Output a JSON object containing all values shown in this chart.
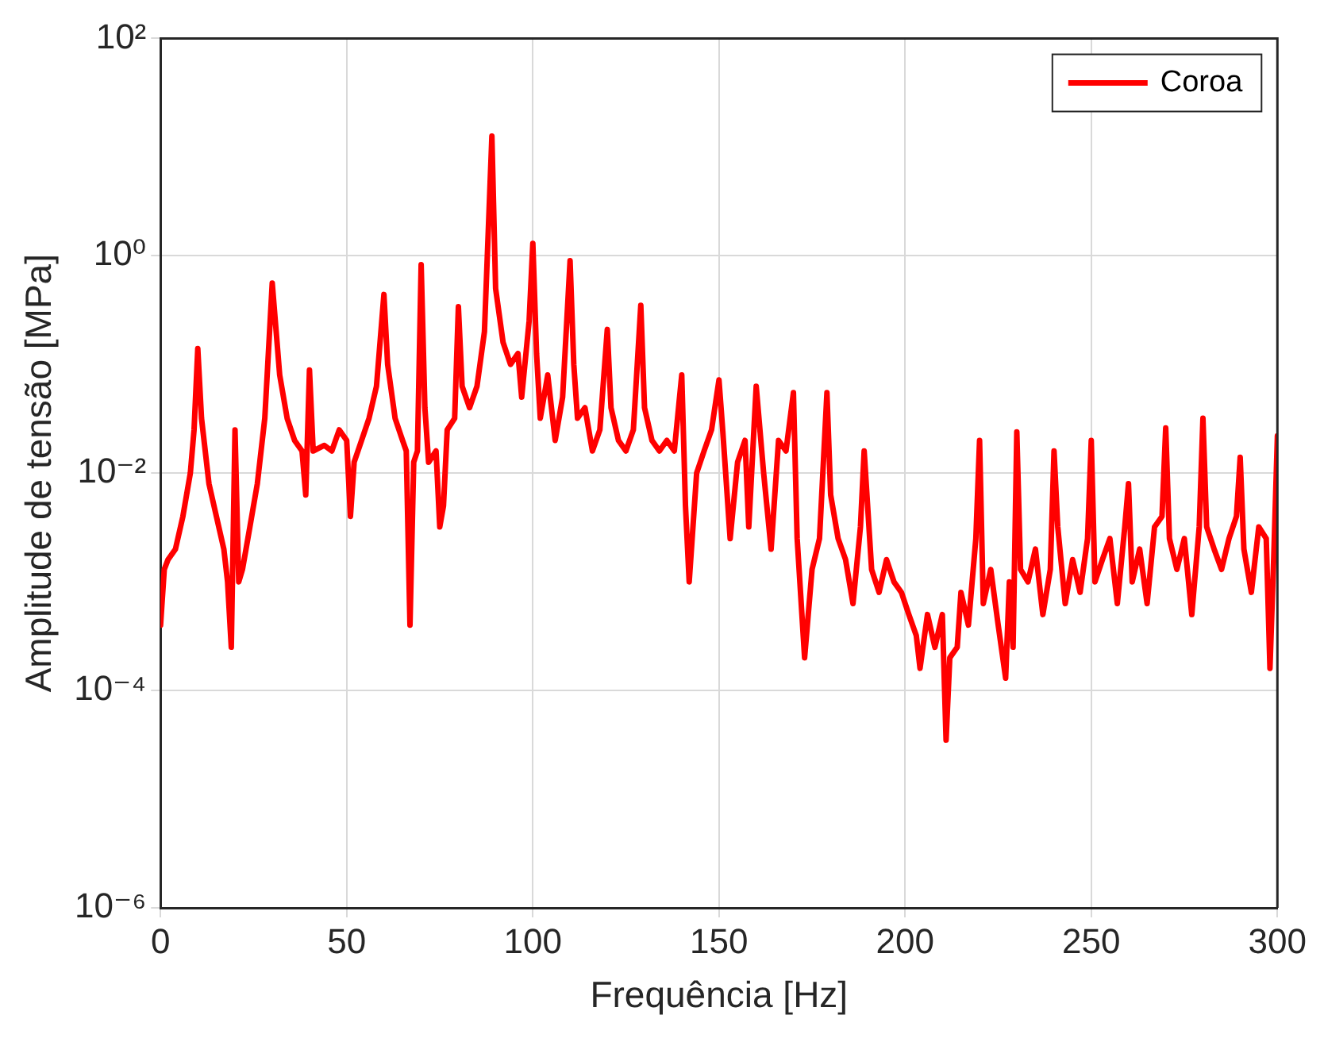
{
  "chart_data": {
    "type": "line",
    "xlabel": "Frequência [Hz]",
    "ylabel": "Amplitude de tensão [MPa]",
    "xlim": [
      0,
      300
    ],
    "xticks": [
      0,
      50,
      100,
      150,
      200,
      250,
      300
    ],
    "ylim": [
      1e-06,
      100
    ],
    "yticks": [
      {
        "value": 1e-06,
        "label": "10⁻⁶"
      },
      {
        "value": 0.0001,
        "label": "10⁻⁴"
      },
      {
        "value": 0.01,
        "label": "10⁻²"
      },
      {
        "value": 1,
        "label": "10⁰"
      },
      {
        "value": 100,
        "label": "10²"
      }
    ],
    "log": "y",
    "grid": true,
    "legend": "top right",
    "marker": "none",
    "line_style": "solid",
    "series": [
      {
        "name": "Coroa",
        "color": "#ff0000",
        "x": [
          0,
          1,
          2,
          4,
          6,
          8,
          9,
          10,
          11,
          13,
          15,
          17,
          18,
          19,
          20,
          21,
          22,
          24,
          26,
          28,
          30,
          32,
          34,
          36,
          38,
          39,
          40,
          41,
          44,
          46,
          48,
          50,
          51,
          52,
          54,
          56,
          58,
          60,
          61,
          63,
          65,
          66,
          67,
          68,
          69,
          70,
          71,
          72,
          74,
          75,
          76,
          77,
          79,
          80,
          81,
          83,
          85,
          87,
          89,
          90,
          92,
          94,
          96,
          97,
          99,
          100,
          101,
          102,
          104,
          106,
          108,
          110,
          111,
          112,
          114,
          116,
          118,
          120,
          121,
          123,
          125,
          127,
          129,
          130,
          132,
          134,
          136,
          138,
          140,
          141,
          142,
          144,
          146,
          148,
          150,
          151,
          153,
          155,
          157,
          158,
          160,
          162,
          164,
          166,
          168,
          170,
          171,
          173,
          175,
          177,
          179,
          180,
          182,
          184,
          186,
          188,
          189,
          191,
          193,
          195,
          197,
          199,
          201,
          203,
          204,
          206,
          208,
          210,
          211,
          212,
          214,
          215,
          217,
          219,
          220,
          221,
          223,
          225,
          227,
          228,
          229,
          230,
          231,
          233,
          235,
          237,
          239,
          240,
          241,
          243,
          245,
          247,
          249,
          250,
          251,
          253,
          255,
          257,
          259,
          260,
          261,
          263,
          265,
          267,
          269,
          270,
          271,
          273,
          275,
          277,
          279,
          280,
          281,
          283,
          285,
          287,
          289,
          290,
          291,
          293,
          295,
          297,
          298,
          299,
          300
        ],
        "values": [
          0.0004,
          0.0013,
          0.0016,
          0.002,
          0.004,
          0.01,
          0.025,
          0.14,
          0.032,
          0.008,
          0.004,
          0.002,
          0.001,
          0.00025,
          0.025,
          0.001,
          0.0013,
          0.0032,
          0.008,
          0.032,
          0.56,
          0.08,
          0.032,
          0.02,
          0.016,
          0.0063,
          0.089,
          0.016,
          0.018,
          0.016,
          0.025,
          0.02,
          0.004,
          0.0126,
          0.02,
          0.032,
          0.063,
          0.44,
          0.1,
          0.032,
          0.02,
          0.016,
          0.0004,
          0.0126,
          0.016,
          0.83,
          0.04,
          0.0126,
          0.016,
          0.0032,
          0.005,
          0.025,
          0.032,
          0.34,
          0.063,
          0.04,
          0.063,
          0.2,
          12.6,
          0.5,
          0.16,
          0.1,
          0.126,
          0.05,
          0.25,
          1.3,
          0.126,
          0.032,
          0.08,
          0.02,
          0.05,
          0.9,
          0.1,
          0.032,
          0.04,
          0.016,
          0.025,
          0.21,
          0.04,
          0.02,
          0.016,
          0.025,
          0.35,
          0.04,
          0.02,
          0.016,
          0.02,
          0.016,
          0.08,
          0.005,
          0.001,
          0.01,
          0.016,
          0.025,
          0.072,
          0.025,
          0.0025,
          0.0126,
          0.02,
          0.0032,
          0.063,
          0.01,
          0.002,
          0.02,
          0.016,
          0.055,
          0.0025,
          0.0002,
          0.0013,
          0.0025,
          0.055,
          0.0063,
          0.0025,
          0.0016,
          0.00063,
          0.0032,
          0.016,
          0.0013,
          0.0008,
          0.0016,
          0.001,
          0.0008,
          0.0005,
          0.00032,
          0.00016,
          0.0005,
          0.00025,
          0.0005,
          3.5e-05,
          0.0002,
          0.00025,
          0.0008,
          0.0004,
          0.0025,
          0.02,
          0.00063,
          0.0013,
          0.0004,
          0.00013,
          0.001,
          0.00025,
          0.024,
          0.0013,
          0.001,
          0.002,
          0.0005,
          0.0013,
          0.016,
          0.0032,
          0.00063,
          0.0016,
          0.0008,
          0.0025,
          0.02,
          0.001,
          0.0016,
          0.0025,
          0.00063,
          0.0032,
          0.008,
          0.001,
          0.002,
          0.00063,
          0.0032,
          0.004,
          0.026,
          0.0025,
          0.0013,
          0.0025,
          0.0005,
          0.0032,
          0.032,
          0.0032,
          0.002,
          0.0013,
          0.0025,
          0.004,
          0.014,
          0.002,
          0.0008,
          0.0032,
          0.0025,
          0.00016,
          0.0016,
          0.022
        ]
      }
    ]
  }
}
